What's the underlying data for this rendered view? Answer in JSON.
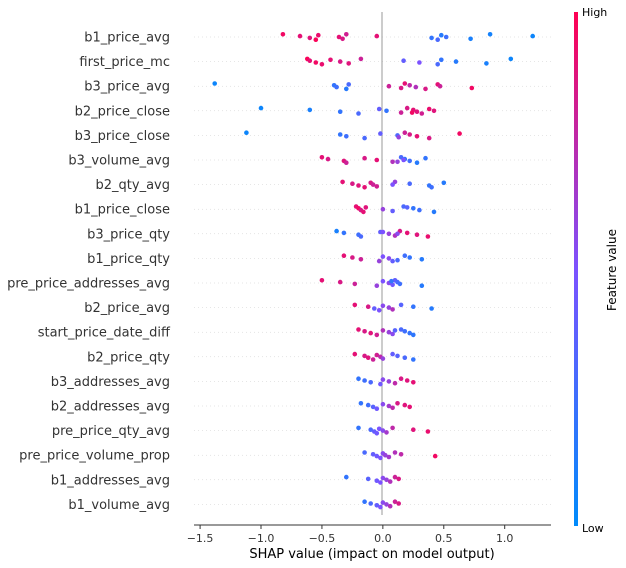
{
  "chart_data": {
    "type": "scatter",
    "title": "",
    "xlabel": "SHAP value (impact on model output)",
    "ylabel": "",
    "xlim": [
      -1.55,
      1.38
    ],
    "xticks": [
      -1.5,
      -1.0,
      -0.5,
      0.0,
      0.5,
      1.0
    ],
    "xtick_labels": [
      "−1.5",
      "−1.0",
      "−0.5",
      "0.0",
      "0.5",
      "1.0"
    ],
    "colorbar": {
      "title": "Feature value",
      "high_label": "High",
      "low_label": "Low",
      "low_color": "#008bfb",
      "high_color": "#ff0052"
    },
    "features": [
      {
        "name": "b1_price_avg",
        "points": [
          [
            -0.82,
            0.95
          ],
          [
            -0.68,
            0.9
          ],
          [
            -0.6,
            0.88
          ],
          [
            -0.55,
            0.98
          ],
          [
            -0.53,
            0.92
          ],
          [
            -0.36,
            0.9
          ],
          [
            -0.33,
            0.85
          ],
          [
            -0.3,
            0.82
          ],
          [
            -0.05,
            0.9
          ],
          [
            0.4,
            0.2
          ],
          [
            0.45,
            0.3
          ],
          [
            0.48,
            0.15
          ],
          [
            0.52,
            0.25
          ],
          [
            0.72,
            0.1
          ],
          [
            0.88,
            0.08
          ],
          [
            1.23,
            0.05
          ]
        ]
      },
      {
        "name": "first_price_mc",
        "points": [
          [
            -0.62,
            0.98
          ],
          [
            -0.6,
            0.9
          ],
          [
            -0.55,
            0.95
          ],
          [
            -0.5,
            0.92
          ],
          [
            -0.43,
            0.9
          ],
          [
            -0.35,
            0.85
          ],
          [
            -0.28,
            0.88
          ],
          [
            -0.18,
            0.8
          ],
          [
            0.17,
            0.4
          ],
          [
            0.3,
            0.5
          ],
          [
            0.45,
            0.3
          ],
          [
            0.48,
            0.2
          ],
          [
            0.6,
            0.15
          ],
          [
            0.85,
            0.1
          ],
          [
            1.05,
            0.05
          ]
        ]
      },
      {
        "name": "b3_price_avg",
        "points": [
          [
            -1.38,
            0.05
          ],
          [
            -0.4,
            0.2
          ],
          [
            -0.38,
            0.25
          ],
          [
            -0.3,
            0.15
          ],
          [
            -0.28,
            0.3
          ],
          [
            0.05,
            0.8
          ],
          [
            0.15,
            0.85
          ],
          [
            0.18,
            0.9
          ],
          [
            0.22,
            0.75
          ],
          [
            0.27,
            0.7
          ],
          [
            0.35,
            0.85
          ],
          [
            0.45,
            0.9
          ],
          [
            0.47,
            0.8
          ],
          [
            0.73,
            0.95
          ]
        ]
      },
      {
        "name": "b2_price_close",
        "points": [
          [
            -1.0,
            0.05
          ],
          [
            -0.6,
            0.1
          ],
          [
            -0.35,
            0.2
          ],
          [
            -0.2,
            0.3
          ],
          [
            -0.03,
            0.4
          ],
          [
            0.03,
            0.2
          ],
          [
            0.15,
            0.8
          ],
          [
            0.2,
            0.85
          ],
          [
            0.25,
            0.9
          ],
          [
            0.28,
            0.88
          ],
          [
            0.32,
            0.82
          ],
          [
            0.38,
            0.92
          ],
          [
            0.42,
            0.88
          ],
          [
            0.24,
            0.95
          ]
        ]
      },
      {
        "name": "b3_price_close",
        "points": [
          [
            -1.12,
            0.05
          ],
          [
            -0.35,
            0.2
          ],
          [
            -0.3,
            0.25
          ],
          [
            -0.15,
            0.3
          ],
          [
            -0.02,
            0.4
          ],
          [
            0.12,
            0.3
          ],
          [
            0.13,
            0.6
          ],
          [
            0.18,
            0.8
          ],
          [
            0.22,
            0.85
          ],
          [
            0.28,
            0.9
          ],
          [
            0.38,
            0.85
          ],
          [
            0.63,
            0.95
          ]
        ]
      },
      {
        "name": "b3_volume_avg",
        "points": [
          [
            -0.5,
            0.9
          ],
          [
            -0.45,
            0.85
          ],
          [
            -0.32,
            0.88
          ],
          [
            -0.3,
            0.8
          ],
          [
            -0.15,
            0.85
          ],
          [
            -0.05,
            0.9
          ],
          [
            0.08,
            0.7
          ],
          [
            0.15,
            0.3
          ],
          [
            0.18,
            0.2
          ],
          [
            0.22,
            0.25
          ],
          [
            0.28,
            0.15
          ],
          [
            0.35,
            0.2
          ],
          [
            0.17,
            0.5
          ],
          [
            0.12,
            0.6
          ]
        ]
      },
      {
        "name": "b2_qty_avg",
        "points": [
          [
            -0.33,
            0.9
          ],
          [
            -0.25,
            0.85
          ],
          [
            -0.2,
            0.88
          ],
          [
            -0.15,
            0.9
          ],
          [
            -0.1,
            0.85
          ],
          [
            -0.08,
            0.8
          ],
          [
            -0.05,
            0.82
          ],
          [
            0.1,
            0.6
          ],
          [
            0.22,
            0.3
          ],
          [
            0.38,
            0.2
          ],
          [
            0.4,
            0.25
          ],
          [
            0.5,
            0.15
          ],
          [
            0.08,
            0.5
          ]
        ]
      },
      {
        "name": "b1_price_close",
        "points": [
          [
            -0.22,
            0.9
          ],
          [
            -0.2,
            0.95
          ],
          [
            -0.18,
            0.85
          ],
          [
            -0.16,
            0.9
          ],
          [
            -0.14,
            0.88
          ],
          [
            0.0,
            0.6
          ],
          [
            0.08,
            0.4
          ],
          [
            0.17,
            0.3
          ],
          [
            0.25,
            0.2
          ],
          [
            0.3,
            0.25
          ],
          [
            0.42,
            0.15
          ],
          [
            0.2,
            0.35
          ]
        ]
      },
      {
        "name": "b3_price_qty",
        "points": [
          [
            -0.38,
            0.1
          ],
          [
            -0.32,
            0.2
          ],
          [
            -0.2,
            0.25
          ],
          [
            -0.18,
            0.3
          ],
          [
            -0.02,
            0.4
          ],
          [
            0.05,
            0.6
          ],
          [
            0.1,
            0.7
          ],
          [
            0.14,
            0.85
          ],
          [
            0.2,
            0.9
          ],
          [
            0.28,
            0.88
          ],
          [
            0.37,
            0.92
          ],
          [
            0.0,
            0.5
          ],
          [
            0.12,
            0.55
          ]
        ]
      },
      {
        "name": "b1_price_qty",
        "points": [
          [
            -0.32,
            0.9
          ],
          [
            -0.25,
            0.85
          ],
          [
            -0.18,
            0.8
          ],
          [
            -0.03,
            0.6
          ],
          [
            0.0,
            0.5
          ],
          [
            0.05,
            0.55
          ],
          [
            0.12,
            0.3
          ],
          [
            0.18,
            0.25
          ],
          [
            0.22,
            0.2
          ],
          [
            0.32,
            0.15
          ],
          [
            0.08,
            0.4
          ]
        ]
      },
      {
        "name": "pre_price_addresses_avg",
        "points": [
          [
            -0.5,
            0.9
          ],
          [
            -0.35,
            0.85
          ],
          [
            -0.23,
            0.8
          ],
          [
            -0.05,
            0.6
          ],
          [
            0.0,
            0.5
          ],
          [
            0.05,
            0.55
          ],
          [
            0.08,
            0.45
          ],
          [
            0.1,
            0.4
          ],
          [
            0.12,
            0.3
          ],
          [
            0.14,
            0.25
          ],
          [
            0.32,
            0.15
          ],
          [
            0.07,
            0.2
          ]
        ]
      },
      {
        "name": "b2_price_avg",
        "points": [
          [
            -0.23,
            0.9
          ],
          [
            -0.12,
            0.85
          ],
          [
            -0.07,
            0.4
          ],
          [
            -0.03,
            0.5
          ],
          [
            0.0,
            0.55
          ],
          [
            0.05,
            0.6
          ],
          [
            0.08,
            0.7
          ],
          [
            0.15,
            0.35
          ],
          [
            0.25,
            0.2
          ],
          [
            0.4,
            0.15
          ]
        ]
      },
      {
        "name": "start_price_date_diff",
        "points": [
          [
            -0.2,
            0.9
          ],
          [
            -0.15,
            0.85
          ],
          [
            -0.1,
            0.88
          ],
          [
            -0.05,
            0.82
          ],
          [
            0.0,
            0.7
          ],
          [
            0.05,
            0.6
          ],
          [
            0.08,
            0.55
          ],
          [
            0.15,
            0.3
          ],
          [
            0.18,
            0.25
          ],
          [
            0.22,
            0.2
          ],
          [
            0.25,
            0.18
          ],
          [
            0.1,
            0.35
          ]
        ]
      },
      {
        "name": "b2_price_qty",
        "points": [
          [
            -0.23,
            0.9
          ],
          [
            -0.15,
            0.85
          ],
          [
            -0.12,
            0.88
          ],
          [
            -0.08,
            0.8
          ],
          [
            -0.05,
            0.82
          ],
          [
            -0.02,
            0.75
          ],
          [
            0.0,
            0.6
          ],
          [
            0.08,
            0.4
          ],
          [
            0.12,
            0.35
          ],
          [
            0.18,
            0.3
          ],
          [
            0.25,
            0.2
          ]
        ]
      },
      {
        "name": "b3_addresses_avg",
        "points": [
          [
            -0.2,
            0.2
          ],
          [
            -0.15,
            0.25
          ],
          [
            -0.1,
            0.3
          ],
          [
            -0.02,
            0.45
          ],
          [
            0.0,
            0.55
          ],
          [
            0.05,
            0.6
          ],
          [
            0.1,
            0.75
          ],
          [
            0.15,
            0.85
          ],
          [
            0.2,
            0.88
          ],
          [
            0.25,
            0.9
          ]
        ]
      },
      {
        "name": "b2_addresses_avg",
        "points": [
          [
            -0.18,
            0.2
          ],
          [
            -0.12,
            0.25
          ],
          [
            -0.08,
            0.35
          ],
          [
            -0.05,
            0.45
          ],
          [
            0.0,
            0.55
          ],
          [
            0.05,
            0.65
          ],
          [
            0.08,
            0.75
          ],
          [
            0.12,
            0.85
          ],
          [
            0.18,
            0.88
          ],
          [
            0.22,
            0.9
          ]
        ]
      },
      {
        "name": "pre_price_qty_avg",
        "points": [
          [
            -0.2,
            0.2
          ],
          [
            -0.1,
            0.3
          ],
          [
            -0.07,
            0.4
          ],
          [
            -0.05,
            0.45
          ],
          [
            -0.03,
            0.5
          ],
          [
            0.0,
            0.55
          ],
          [
            0.03,
            0.65
          ],
          [
            0.08,
            0.75
          ],
          [
            0.25,
            0.88
          ],
          [
            0.37,
            0.92
          ]
        ]
      },
      {
        "name": "pre_price_volume_prop",
        "points": [
          [
            -0.15,
            0.3
          ],
          [
            -0.08,
            0.4
          ],
          [
            -0.05,
            0.45
          ],
          [
            -0.02,
            0.5
          ],
          [
            0.0,
            0.55
          ],
          [
            0.02,
            0.6
          ],
          [
            0.05,
            0.65
          ],
          [
            0.1,
            0.7
          ],
          [
            0.15,
            0.75
          ],
          [
            0.43,
            0.95
          ]
        ]
      },
      {
        "name": "b1_addresses_avg",
        "points": [
          [
            -0.3,
            0.2
          ],
          [
            -0.12,
            0.35
          ],
          [
            -0.05,
            0.45
          ],
          [
            -0.02,
            0.5
          ],
          [
            0.0,
            0.55
          ],
          [
            0.03,
            0.6
          ],
          [
            0.06,
            0.7
          ],
          [
            0.1,
            0.8
          ],
          [
            0.13,
            0.85
          ]
        ]
      },
      {
        "name": "b1_volume_avg",
        "points": [
          [
            -0.15,
            0.2
          ],
          [
            -0.1,
            0.3
          ],
          [
            -0.05,
            0.4
          ],
          [
            -0.02,
            0.5
          ],
          [
            0.0,
            0.55
          ],
          [
            0.03,
            0.6
          ],
          [
            0.06,
            0.7
          ],
          [
            0.1,
            0.8
          ],
          [
            0.13,
            0.85
          ]
        ]
      }
    ]
  }
}
